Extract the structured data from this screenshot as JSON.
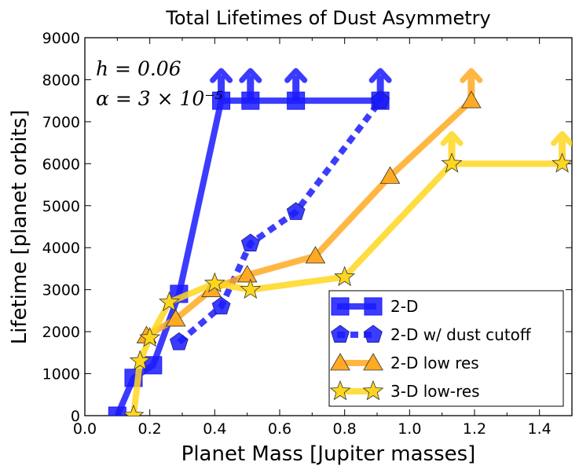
{
  "chart_data": {
    "type": "line",
    "title": "Total Lifetimes of Dust Asymmetry",
    "xlabel": "Planet Mass [Jupiter masses]",
    "ylabel": "Lifetime [planet orbits]",
    "xlim": [
      0.0,
      1.5
    ],
    "ylim": [
      0,
      9000
    ],
    "xticks": [
      0.0,
      0.2,
      0.4,
      0.6,
      0.8,
      1.0,
      1.2,
      1.4
    ],
    "xtick_labels": [
      "0.0",
      "0.2",
      "0.4",
      "0.6",
      "0.8",
      "1.0",
      "1.2",
      "1.4"
    ],
    "yticks": [
      0,
      1000,
      2000,
      3000,
      4000,
      5000,
      6000,
      7000,
      8000,
      9000
    ],
    "ytick_labels": [
      "0",
      "1000",
      "2000",
      "3000",
      "4000",
      "5000",
      "6000",
      "7000",
      "8000",
      "9000"
    ],
    "grid": false,
    "legend_position": "lower-right",
    "annotations": [
      {
        "text": "h = 0.06"
      },
      {
        "text": "α = 3 × 10⁻⁵"
      }
    ],
    "series": [
      {
        "name": "2-D",
        "color": "#1a1aff",
        "marker": "square",
        "linestyle": "solid",
        "x": [
          0.1,
          0.15,
          0.21,
          0.29,
          0.42,
          0.51,
          0.65,
          0.91
        ],
        "y": [
          0,
          900,
          1200,
          2900,
          7500,
          7500,
          7500,
          7500
        ],
        "lower_limit": [
          false,
          false,
          false,
          false,
          true,
          true,
          true,
          true
        ]
      },
      {
        "name": "2-D w/ dust cutoff",
        "color": "#1a1aff",
        "marker": "pentagon",
        "linestyle": "dashed",
        "x": [
          0.29,
          0.42,
          0.51,
          0.65,
          0.91
        ],
        "y": [
          1750,
          2600,
          4100,
          4850,
          7500
        ],
        "lower_limit": [
          false,
          false,
          false,
          false,
          false
        ]
      },
      {
        "name": "2-D low res",
        "color": "#ffaa22",
        "marker": "triangle",
        "linestyle": "solid",
        "x": [
          0.19,
          0.28,
          0.39,
          0.5,
          0.71,
          0.94,
          1.19
        ],
        "y": [
          1900,
          2300,
          3000,
          3350,
          3800,
          5700,
          7500
        ],
        "lower_limit": [
          false,
          false,
          false,
          false,
          false,
          false,
          true
        ]
      },
      {
        "name": "3-D low-res",
        "color": "#ffd61f",
        "marker": "star",
        "linestyle": "solid",
        "x": [
          0.15,
          0.17,
          0.2,
          0.26,
          0.4,
          0.51,
          0.8,
          1.13,
          1.47
        ],
        "y": [
          0,
          1300,
          1850,
          2700,
          3150,
          3000,
          3300,
          6000,
          6000
        ],
        "lower_limit": [
          false,
          false,
          false,
          false,
          false,
          false,
          false,
          true,
          true
        ]
      }
    ]
  }
}
